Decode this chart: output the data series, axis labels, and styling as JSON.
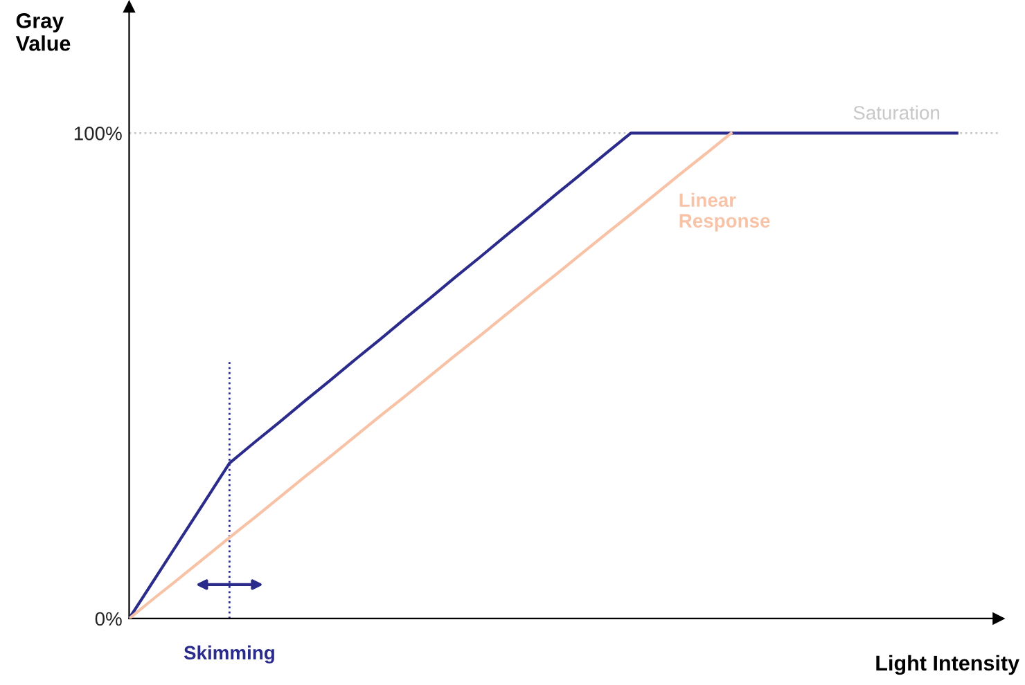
{
  "chart_data": {
    "type": "line",
    "xlabel": "Light Intensity",
    "ylabel": "Gray\nValue",
    "categories": [
      null,
      null,
      null,
      null,
      null,
      null,
      null,
      null,
      null,
      null,
      null,
      null,
      null,
      null,
      null,
      null,
      null,
      null,
      null,
      null,
      null,
      null,
      null,
      null,
      null,
      null,
      null,
      null,
      null,
      null,
      null,
      null,
      null,
      null
    ],
    "series": [
      {
        "color": "#2b2b8c",
        "values": [
          0,
          8,
          16,
          24,
          32,
          36.3,
          40.5,
          44.8,
          49,
          53.3,
          57.5,
          61.8,
          66,
          70.3,
          74.5,
          78.8,
          83,
          87.3,
          91.5,
          95.8,
          100,
          100,
          100,
          100,
          100,
          100,
          100,
          100,
          100,
          100,
          100,
          100,
          100,
          100
        ]
      },
      {
        "color": "#f7c2a6",
        "values": [
          0,
          4.2,
          8.3,
          12.5,
          16.7,
          20.8,
          25,
          29.2,
          33.3,
          37.5,
          41.7,
          45.8,
          50,
          54.2,
          58.3,
          62.5,
          66.7,
          70.8,
          75,
          79.2,
          83.3,
          87.5,
          91.7,
          95.8,
          100,
          null,
          null,
          null,
          null,
          null,
          null,
          null,
          null,
          null
        ]
      }
    ],
    "ylim": [
      0,
      126
    ],
    "yticks": [
      {
        "value": 0,
        "label": "0%"
      },
      {
        "value": 100,
        "label": "100%"
      }
    ],
    "ref_lines": [
      {
        "axis": "y",
        "value": 100,
        "label": "Saturation",
        "color": "#c8c8c8",
        "line_style": "dotted"
      },
      {
        "axis": "x",
        "label": "Skimming",
        "color": "#2b2b8c",
        "line_style": "dotted"
      }
    ],
    "annotations": [
      "Linear\nResponse"
    ],
    "grid": false,
    "legend": false,
    "marker": "none",
    "line_style": "solid"
  }
}
